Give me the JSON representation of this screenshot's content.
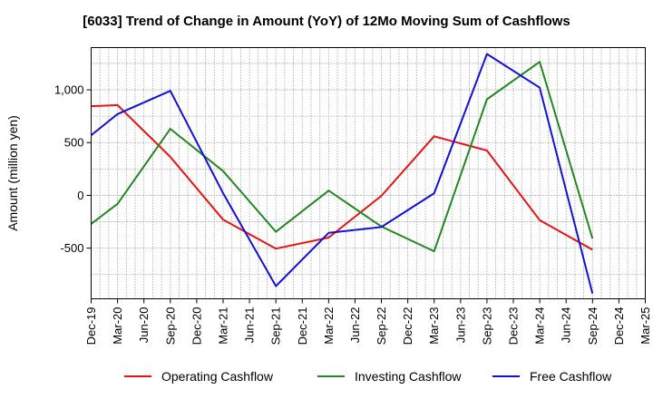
{
  "chart_data": {
    "type": "line",
    "title": "[6033]  Trend of Change in Amount (YoY) of 12Mo Moving Sum of Cashflows",
    "xlabel": "",
    "ylabel": "Amount (million yen)",
    "ylim": [
      -980,
      1400
    ],
    "yticks": [
      -500,
      0,
      500,
      1000
    ],
    "ytick_labels": [
      "-500",
      "0",
      "500",
      "1,000"
    ],
    "categories": [
      "Dec-19",
      "Mar-20",
      "Jun-20",
      "Sep-20",
      "Dec-20",
      "Mar-21",
      "Jun-21",
      "Sep-21",
      "Dec-21",
      "Mar-22",
      "Jun-22",
      "Sep-22",
      "Dec-22",
      "Mar-23",
      "Jun-23",
      "Sep-23",
      "Dec-23",
      "Mar-24",
      "Jun-24",
      "Sep-24",
      "Dec-24",
      "Mar-25"
    ],
    "grid": true,
    "legend": "bottom",
    "series": [
      {
        "name": "Operating Cashflow",
        "color": "#ee1111",
        "points": [
          [
            0,
            845
          ],
          [
            1,
            855
          ],
          [
            3,
            365
          ],
          [
            5,
            -230
          ],
          [
            7,
            -505
          ],
          [
            9,
            -400
          ],
          [
            11,
            -5
          ],
          [
            13,
            560
          ],
          [
            15,
            425
          ],
          [
            17,
            -235
          ],
          [
            19,
            -515
          ]
        ]
      },
      {
        "name": "Investing Cashflow",
        "color": "#228822",
        "points": [
          [
            0,
            -270
          ],
          [
            1,
            -80
          ],
          [
            3,
            630
          ],
          [
            5,
            230
          ],
          [
            7,
            -345
          ],
          [
            9,
            45
          ],
          [
            11,
            -295
          ],
          [
            13,
            -530
          ],
          [
            15,
            910
          ],
          [
            17,
            1265
          ],
          [
            19,
            -410
          ]
        ]
      },
      {
        "name": "Free Cashflow",
        "color": "#1111dd",
        "points": [
          [
            0,
            570
          ],
          [
            1,
            770
          ],
          [
            3,
            990
          ],
          [
            5,
            20
          ],
          [
            7,
            -860
          ],
          [
            9,
            -355
          ],
          [
            11,
            -300
          ],
          [
            13,
            20
          ],
          [
            15,
            1340
          ],
          [
            17,
            1020
          ],
          [
            19,
            -930
          ]
        ]
      }
    ]
  }
}
